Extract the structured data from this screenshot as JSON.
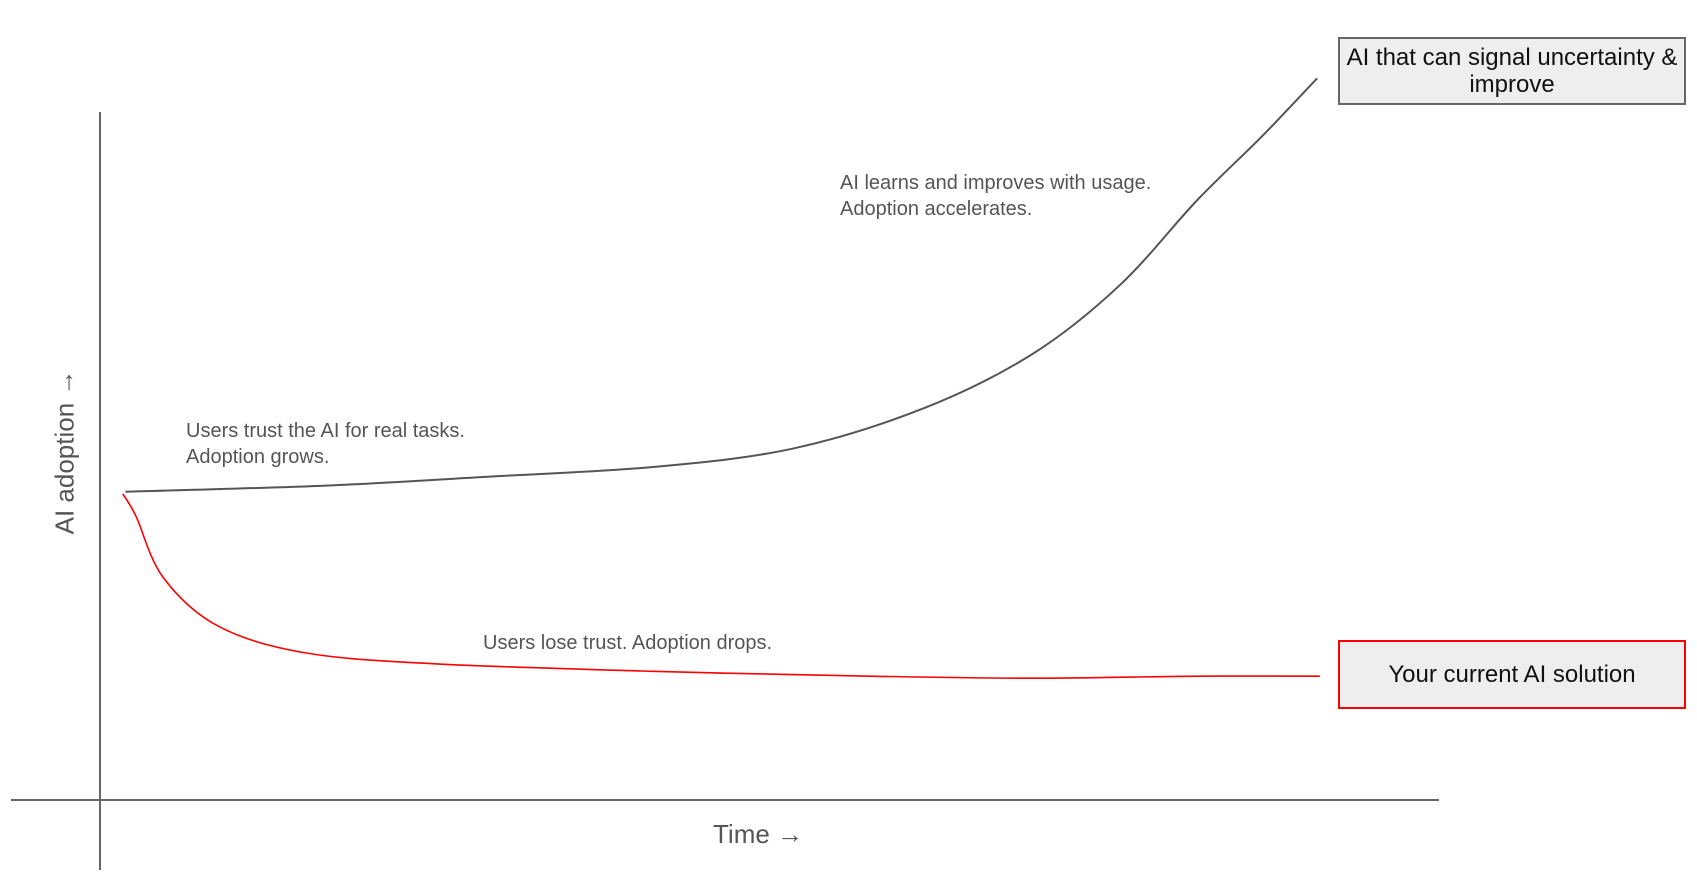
{
  "chart_data": {
    "type": "line",
    "title": "",
    "xlabel": "Time →",
    "ylabel": "AI adoption →",
    "xlim": [
      0,
      100
    ],
    "ylim": [
      0,
      100
    ],
    "grid": false,
    "colors": {
      "axis": "#666666",
      "improving": "#555555",
      "current": "#ff0000",
      "box_fill": "#eeeeee"
    },
    "series": [
      {
        "name": "AI that can signal uncertainty & improve",
        "color": "#555555",
        "x": [
          1.9,
          16.9,
          29.1,
          41.3,
          51.8,
          61.6,
          69.7,
          76.2,
          81.9,
          86.8,
          90.9
        ],
        "y": [
          44.8,
          45.7,
          47.0,
          48.4,
          51.1,
          57.0,
          64.9,
          74.9,
          87.1,
          96.5,
          104.9
        ]
      },
      {
        "name": "Your current AI solution",
        "color": "#ff0000",
        "x": [
          1.7,
          2.7,
          4.7,
          8.8,
          15.3,
          25.0,
          41.3,
          57.5,
          69.7,
          81.9,
          91.1
        ],
        "y": [
          44.5,
          41.2,
          32.4,
          25.3,
          21.4,
          19.8,
          18.7,
          18.0,
          17.7,
          18.0,
          18.0
        ]
      }
    ],
    "annotations": [
      "Users trust the AI for real tasks.\nAdoption grows.",
      "AI learns and improves with usage.\nAdoption accelerates.",
      "Users lose trust. Adoption drops."
    ]
  }
}
